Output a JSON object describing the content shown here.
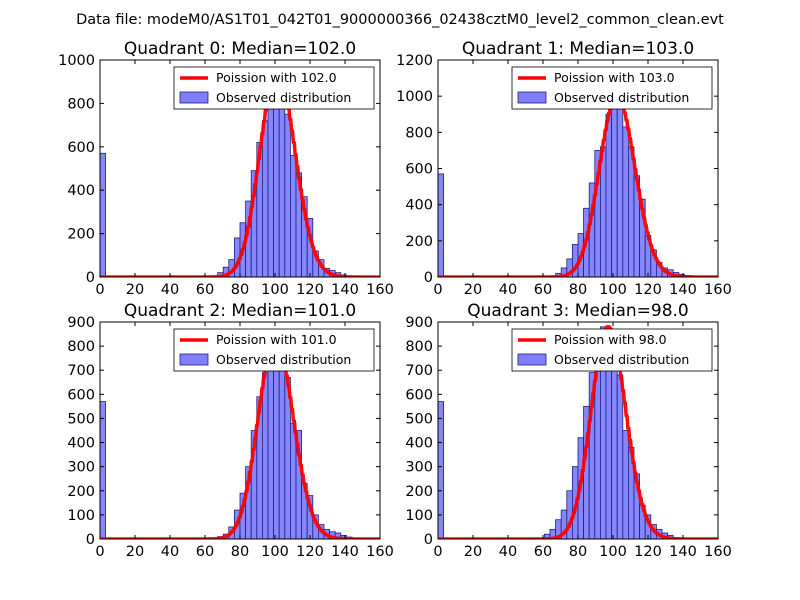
{
  "figure_title": "Data file: modeM0/AS1T01_042T01_9000000366_02438cztM0_level2_common_clean.evt",
  "colors": {
    "fit_line": "#ff0000",
    "bar_fill": "#7f7fff",
    "bar_edge": "#1f1f7f",
    "axes": "#000000",
    "background": "#ffffff"
  },
  "chart_data": [
    {
      "type": "bar",
      "title": "Quadrant 0: Median=102.0",
      "median": 102.0,
      "xlim": [
        0,
        160
      ],
      "ylim": [
        0,
        1000
      ],
      "xticks": [
        0,
        20,
        40,
        60,
        80,
        100,
        120,
        140,
        160
      ],
      "yticks": [
        0,
        200,
        400,
        600,
        800,
        1000
      ],
      "bin_width": 3.2,
      "legend": {
        "position": "top-right",
        "entries": [
          "Poission with 102.0",
          "Observed distribution"
        ]
      },
      "bins_x0": [
        0,
        67.2,
        70.4,
        73.6,
        76.8,
        80.0,
        83.2,
        86.4,
        89.6,
        92.8,
        96.0,
        99.2,
        102.4,
        105.6,
        108.8,
        112.0,
        115.2,
        118.4,
        121.6,
        124.8,
        128.0,
        131.2,
        134.4,
        137.6,
        140.8,
        144.0
      ],
      "counts": [
        570,
        20,
        45,
        80,
        180,
        250,
        350,
        490,
        620,
        720,
        840,
        950,
        900,
        750,
        560,
        480,
        370,
        270,
        120,
        80,
        40,
        30,
        20,
        10,
        5,
        2
      ]
    },
    {
      "type": "bar",
      "title": "Quadrant 1: Median=103.0",
      "median": 103.0,
      "xlim": [
        0,
        160
      ],
      "ylim": [
        0,
        1200
      ],
      "xticks": [
        0,
        20,
        40,
        60,
        80,
        100,
        120,
        140,
        160
      ],
      "yticks": [
        0,
        200,
        400,
        600,
        800,
        1000,
        1200
      ],
      "bin_width": 3.2,
      "legend": {
        "position": "top-right",
        "entries": [
          "Poission with 103.0",
          "Observed distribution"
        ]
      },
      "bins_x0": [
        0,
        67.2,
        70.4,
        73.6,
        76.8,
        80.0,
        83.2,
        86.4,
        89.6,
        92.8,
        96.0,
        99.2,
        102.4,
        105.6,
        108.8,
        112.0,
        115.2,
        118.4,
        121.6,
        124.8,
        128.0,
        131.2,
        134.4,
        137.6,
        140.8,
        144.0
      ],
      "counts": [
        570,
        20,
        50,
        100,
        180,
        240,
        380,
        520,
        700,
        720,
        900,
        1000,
        950,
        830,
        720,
        560,
        430,
        230,
        150,
        80,
        50,
        40,
        25,
        15,
        8,
        3
      ]
    },
    {
      "type": "bar",
      "title": "Quadrant 2: Median=101.0",
      "median": 101.0,
      "xlim": [
        0,
        160
      ],
      "ylim": [
        0,
        900
      ],
      "xticks": [
        0,
        20,
        40,
        60,
        80,
        100,
        120,
        140,
        160
      ],
      "yticks": [
        0,
        100,
        200,
        300,
        400,
        500,
        600,
        700,
        800,
        900
      ],
      "bin_width": 3.2,
      "legend": {
        "position": "top-right",
        "entries": [
          "Poission with 101.0",
          "Observed distribution"
        ]
      },
      "bins_x0": [
        0,
        67.2,
        70.4,
        73.6,
        76.8,
        80.0,
        83.2,
        86.4,
        89.6,
        92.8,
        96.0,
        99.2,
        102.4,
        105.6,
        108.8,
        112.0,
        115.2,
        118.4,
        121.6,
        124.8,
        128.0,
        131.2,
        134.4,
        137.6,
        140.8,
        144.0
      ],
      "counts": [
        570,
        10,
        20,
        50,
        120,
        190,
        300,
        450,
        590,
        690,
        780,
        830,
        790,
        670,
        480,
        450,
        230,
        180,
        100,
        60,
        40,
        30,
        25,
        15,
        8,
        3
      ]
    },
    {
      "type": "bar",
      "title": "Quadrant 3: Median=98.0",
      "median": 98.0,
      "xlim": [
        0,
        160
      ],
      "ylim": [
        0,
        900
      ],
      "xticks": [
        0,
        20,
        40,
        60,
        80,
        100,
        120,
        140,
        160
      ],
      "yticks": [
        0,
        100,
        200,
        300,
        400,
        500,
        600,
        700,
        800,
        900
      ],
      "bin_width": 3.2,
      "legend": {
        "position": "top-right",
        "entries": [
          "Poission with 98.0",
          "Observed distribution"
        ]
      },
      "bins_x0": [
        0,
        60.8,
        64.0,
        67.2,
        70.4,
        73.6,
        76.8,
        80.0,
        83.2,
        86.4,
        89.6,
        92.8,
        96.0,
        99.2,
        102.4,
        105.6,
        108.8,
        112.0,
        115.2,
        118.4,
        121.6,
        124.8,
        128.0,
        131.2,
        134.4
      ],
      "counts": [
        570,
        20,
        40,
        80,
        120,
        200,
        300,
        420,
        550,
        690,
        770,
        880,
        860,
        780,
        680,
        450,
        380,
        270,
        140,
        100,
        60,
        40,
        25,
        15,
        5
      ]
    }
  ]
}
